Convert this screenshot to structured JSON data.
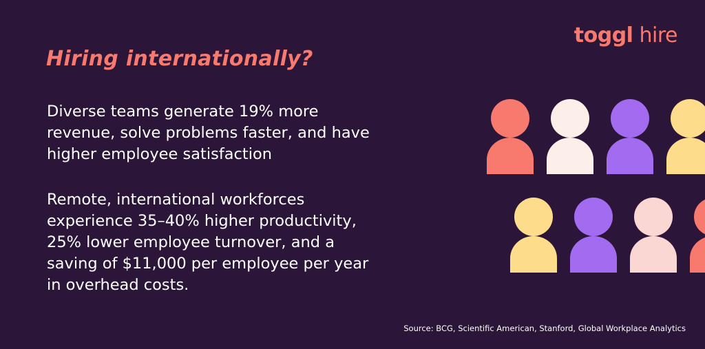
{
  "logo": {
    "brand": "toggl",
    "product": "hire"
  },
  "title": "Hiring internationally?",
  "paragraphs": [
    [
      "Diverse teams generate 19% more",
      "revenue, solve problems faster, and have",
      "higher employee satisfaction"
    ],
    [
      "Remote, international workforces",
      "experience 35–40% higher productivity,",
      "25% lower employee turnover, and a",
      "saving of $11,000 per employee per year",
      "in overhead costs."
    ]
  ],
  "source": "Source: BCG, Scientific American, Stanford, Global Workplace Analytics"
}
